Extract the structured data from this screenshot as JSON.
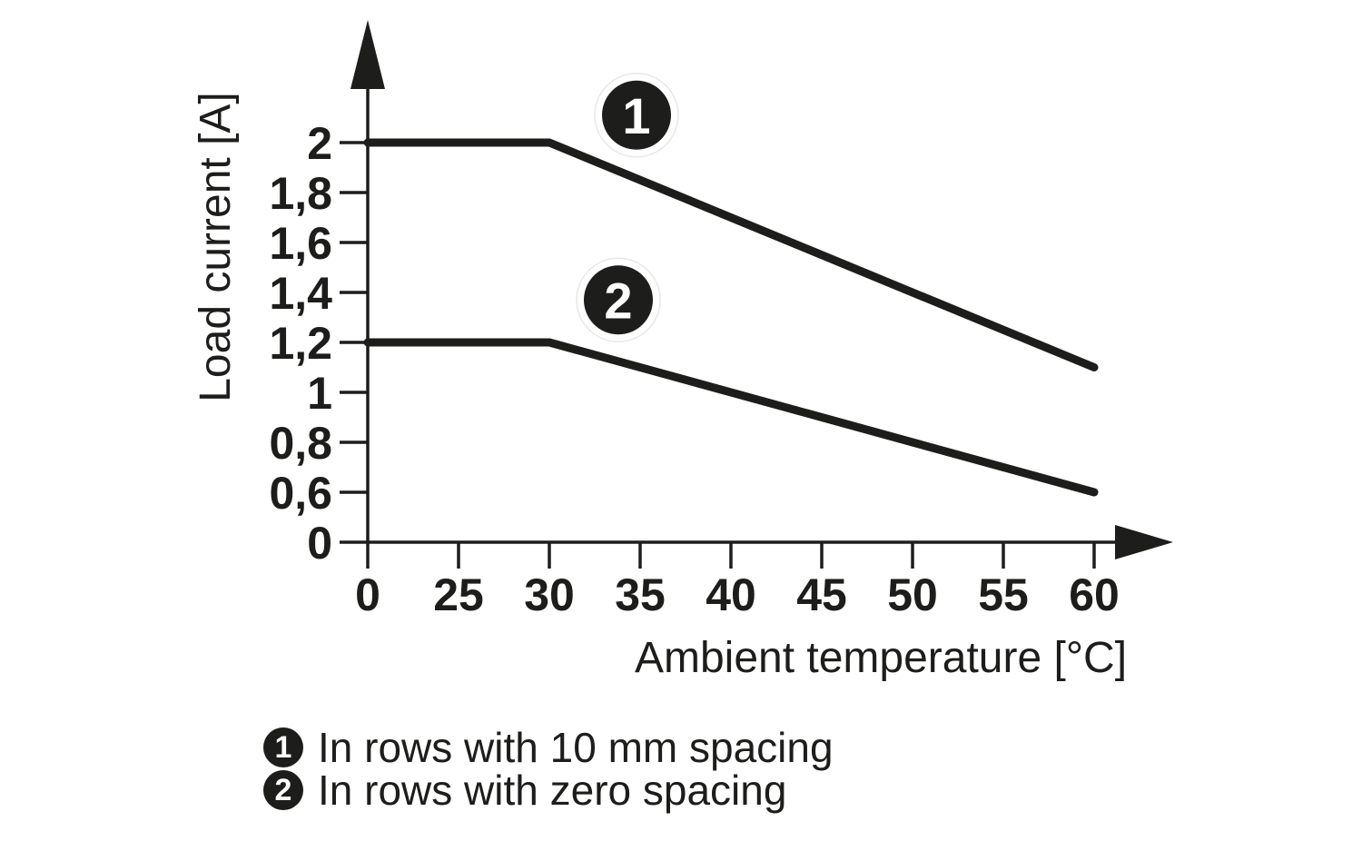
{
  "colors": {
    "ink": "#1d1d1b",
    "paper": "#ffffff",
    "marker_halo": "#ffffff",
    "marker_halo_edge": "#e8e8e8",
    "marker_digit": "#ffffff"
  },
  "chart_data": {
    "type": "line",
    "title": "",
    "xlabel": "Ambient temperature [°C]",
    "ylabel": "Load current [A]",
    "x_ticks": [
      0,
      25,
      30,
      35,
      40,
      45,
      50,
      55,
      60
    ],
    "x_tick_labels": [
      "0",
      "25",
      "30",
      "35",
      "40",
      "45",
      "50",
      "55",
      "60"
    ],
    "y_ticks": [
      2,
      1.8,
      1.6,
      1.4,
      1.2,
      1,
      0.8,
      0.6,
      0
    ],
    "y_tick_labels": [
      "2",
      "1,8",
      "1,6",
      "1,4",
      "1,2",
      "1",
      "0,8",
      "0,6",
      "0"
    ],
    "axis_style": {
      "grid": false,
      "arrows": true,
      "note": "ticks drawn at uniform pixel spacing (value scale is non-linear between 0 and first labeled tick)"
    },
    "series": [
      {
        "marker": "1",
        "name": "In rows with 10 mm spacing",
        "points": [
          [
            0,
            2.0
          ],
          [
            30,
            2.0
          ],
          [
            60,
            1.1
          ]
        ],
        "marker_at": [
          34.8,
          2.11
        ]
      },
      {
        "marker": "2",
        "name": "In rows with zero spacing",
        "points": [
          [
            0,
            1.2
          ],
          [
            30,
            1.2
          ],
          [
            60,
            0.6
          ]
        ],
        "marker_at": [
          33.8,
          1.37
        ]
      }
    ]
  },
  "legend": {
    "items": [
      {
        "marker": "1",
        "label": "In rows with 10 mm spacing"
      },
      {
        "marker": "2",
        "label": "In rows with zero spacing"
      }
    ]
  }
}
